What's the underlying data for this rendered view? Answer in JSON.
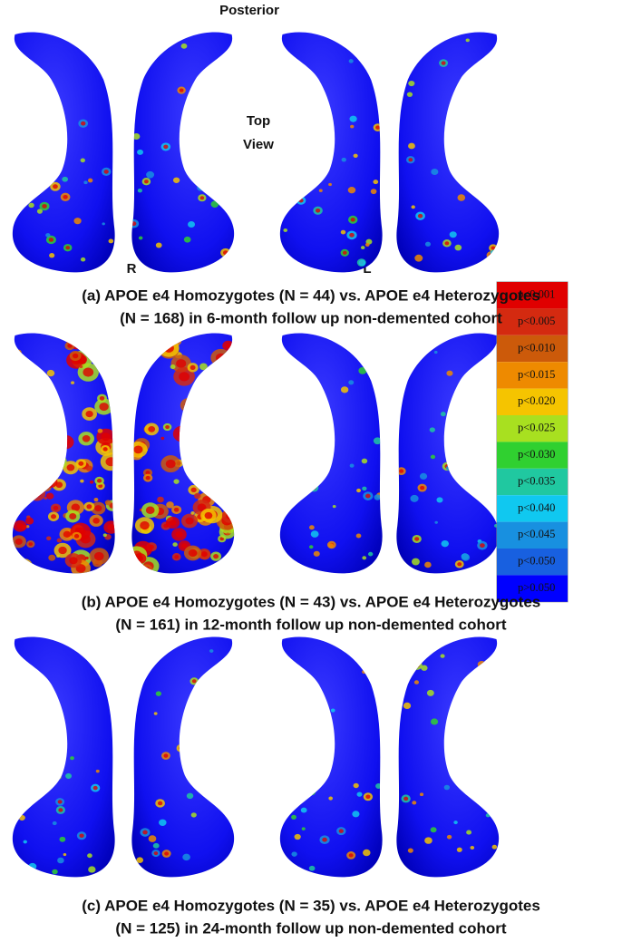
{
  "labels": {
    "posterior": "Posterior",
    "top_view": [
      "Top",
      "View"
    ],
    "right": "R",
    "left": "L"
  },
  "panels": [
    {
      "caption": [
        "(a) APOE e4 Homozygotes (N = 44) vs. APOE e4 Heterozygotes",
        "(N = 168) in 6-month follow up non-demented cohort"
      ]
    },
    {
      "caption": [
        "(b) APOE e4 Homozygotes (N = 43) vs. APOE e4 Heterozygotes",
        "(N = 161) in 12-month follow up non-demented cohort"
      ]
    },
    {
      "caption": [
        "(c) APOE e4 Homozygotes (N = 35) vs. APOE e4 Heterozygotes",
        "(N = 125) in 24-month follow up non-demented cohort"
      ]
    }
  ],
  "legend": [
    {
      "label": "p<0.001",
      "color": "#e00000"
    },
    {
      "label": "p<0.005",
      "color": "#d42a10"
    },
    {
      "label": "p<0.010",
      "color": "#cc5a0a"
    },
    {
      "label": "p<0.015",
      "color": "#ee8a00"
    },
    {
      "label": "p<0.020",
      "color": "#f5c400"
    },
    {
      "label": "p<0.025",
      "color": "#a8e020"
    },
    {
      "label": "p<0.030",
      "color": "#30d030"
    },
    {
      "label": "p<0.035",
      "color": "#20c8a0"
    },
    {
      "label": "p<0.040",
      "color": "#10c8f0"
    },
    {
      "label": "p<0.045",
      "color": "#1890e0"
    },
    {
      "label": "p<0.050",
      "color": "#1860e0"
    },
    {
      "label": "p>0.050",
      "color": "#0000ff"
    }
  ]
}
